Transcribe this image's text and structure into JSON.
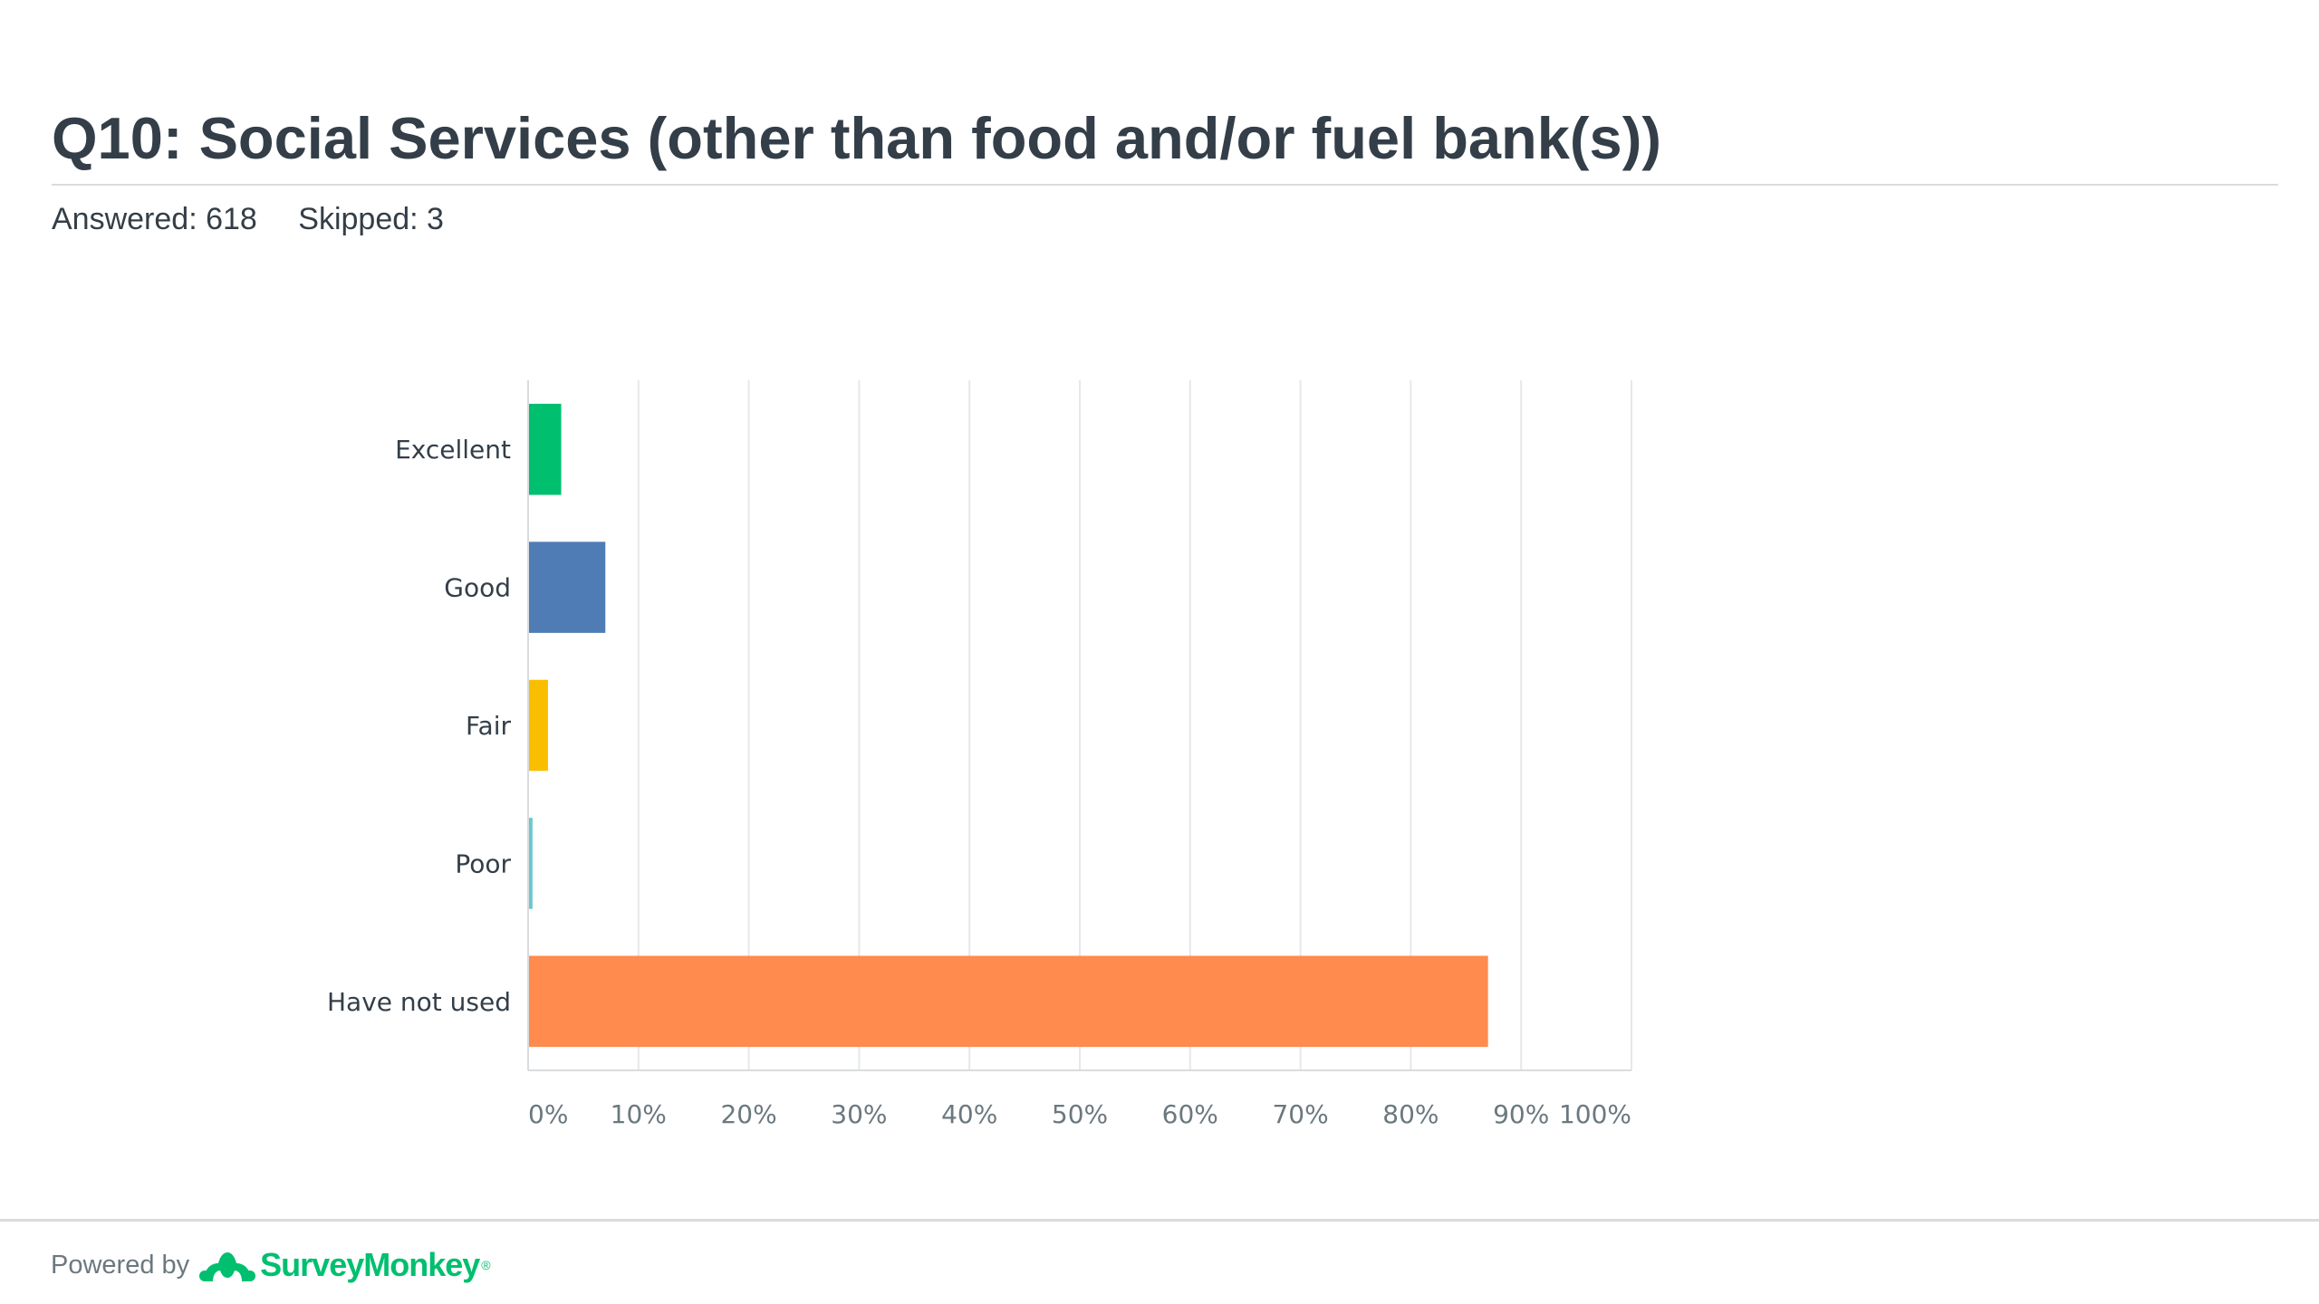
{
  "header": {
    "title": "Q10: Social Services (other than food and/or fuel bank(s))",
    "answered": "Answered: 618",
    "skipped": "Skipped: 3"
  },
  "footer": {
    "powered_by": "Powered by",
    "brand": "SurveyMonkey",
    "brand_mark": "®",
    "brand_color": "#00bf6f"
  },
  "chart_data": {
    "type": "bar",
    "orientation": "horizontal",
    "categories": [
      "Excellent",
      "Good",
      "Fair",
      "Poor",
      "Have not used"
    ],
    "values": [
      3,
      7,
      1.8,
      0.4,
      87
    ],
    "colors": [
      "#00bf6f",
      "#507cb6",
      "#f9be00",
      "#6bc8cd",
      "#ff8b4f"
    ],
    "xlim": [
      0,
      100
    ],
    "xticks": [
      "0%",
      "10%",
      "20%",
      "30%",
      "40%",
      "50%",
      "60%",
      "70%",
      "80%",
      "90%",
      "100%"
    ],
    "grid": true
  }
}
